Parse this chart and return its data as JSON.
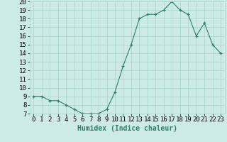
{
  "x": [
    0,
    1,
    2,
    3,
    4,
    5,
    6,
    7,
    8,
    9,
    10,
    11,
    12,
    13,
    14,
    15,
    16,
    17,
    18,
    19,
    20,
    21,
    22,
    23
  ],
  "y": [
    9,
    9,
    8.5,
    8.5,
    8,
    7.5,
    7,
    7,
    7,
    7.5,
    9.5,
    12.5,
    15,
    18,
    18.5,
    18.5,
    19,
    20,
    19,
    18.5,
    16,
    17.5,
    15,
    14
  ],
  "line_color": "#2e7d6e",
  "marker_color": "#2e7d6e",
  "bg_color": "#cceae7",
  "grid_color": "#aad4d0",
  "xlabel": "Humidex (Indice chaleur)",
  "ylim": [
    7,
    20
  ],
  "xlim": [
    -0.5,
    23.5
  ],
  "yticks": [
    7,
    8,
    9,
    10,
    11,
    12,
    13,
    14,
    15,
    16,
    17,
    18,
    19,
    20
  ],
  "xtick_labels": [
    "0",
    "1",
    "2",
    "3",
    "4",
    "5",
    "6",
    "7",
    "8",
    "9",
    "10",
    "11",
    "12",
    "13",
    "14",
    "15",
    "16",
    "17",
    "18",
    "19",
    "20",
    "21",
    "22",
    "23"
  ],
  "label_fontsize": 7,
  "tick_fontsize": 6.5
}
